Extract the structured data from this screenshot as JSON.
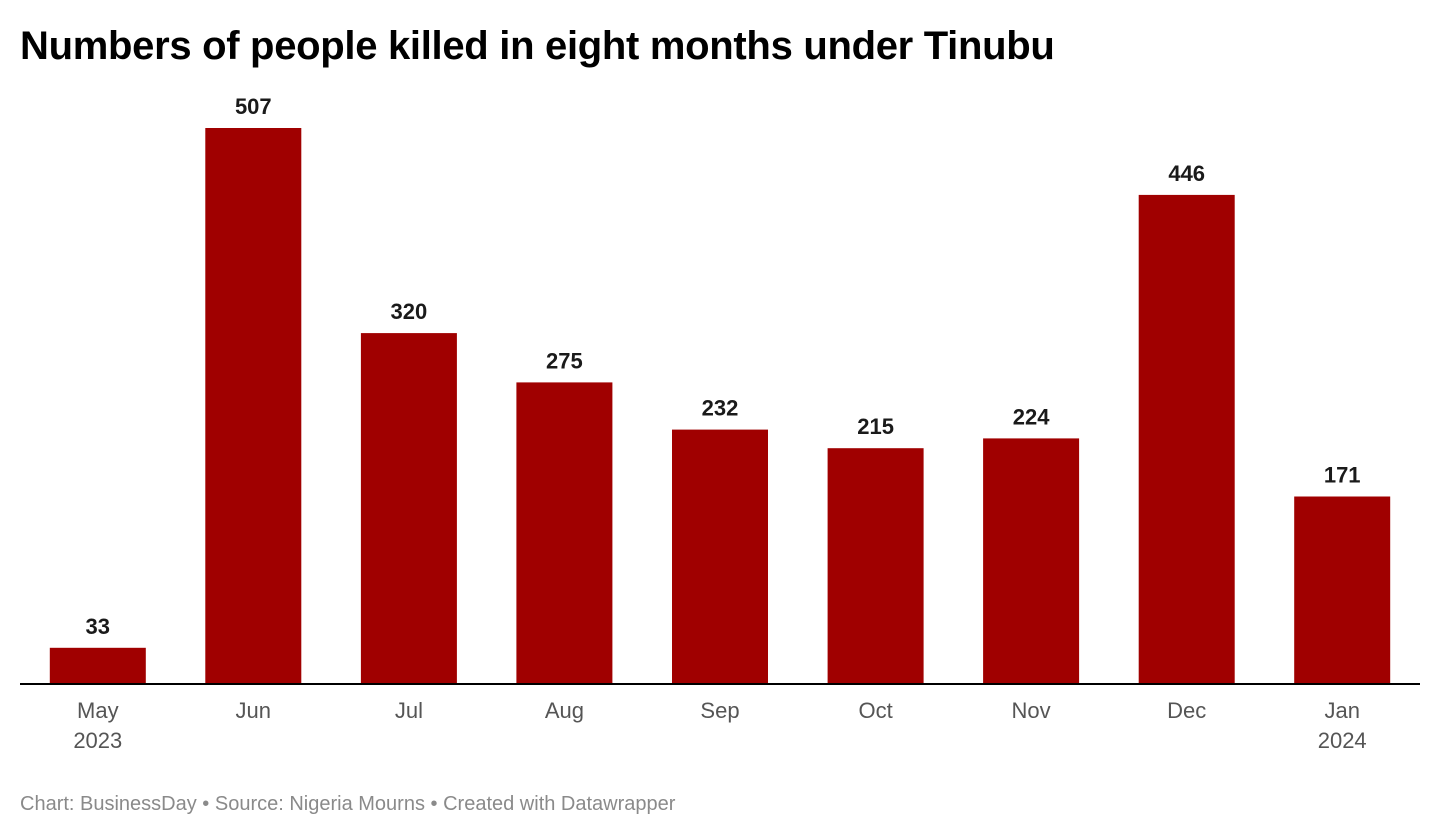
{
  "title": "Numbers of people killed in eight months under Tinubu",
  "footer": {
    "byline": "Chart: BusinessDay",
    "separator": " • ",
    "source": "Source: Nigeria Mourns",
    "credit": "Created with Datawrapper"
  },
  "colors": {
    "bar": "#a00000",
    "axis": "#000000",
    "value_label": "#1a1a1a",
    "tick_label": "#555555",
    "footer": "#8a8a8a"
  },
  "chart_data": {
    "type": "bar",
    "title": "Numbers of people killed in eight months under Tinubu",
    "xlabel": "",
    "ylabel": "",
    "categories": [
      "May 2023",
      "Jun",
      "Jul",
      "Aug",
      "Sep",
      "Oct",
      "Nov",
      "Dec",
      "Jan 2024"
    ],
    "category_lines": [
      [
        "May",
        "2023"
      ],
      [
        "Jun"
      ],
      [
        "Jul"
      ],
      [
        "Aug"
      ],
      [
        "Sep"
      ],
      [
        "Oct"
      ],
      [
        "Nov"
      ],
      [
        "Dec"
      ],
      [
        "Jan",
        "2024"
      ]
    ],
    "values": [
      33,
      507,
      320,
      275,
      232,
      215,
      224,
      446,
      171
    ],
    "ylim": [
      0,
      507
    ],
    "grid": false,
    "y_axis_shown": false,
    "data_labels": "above bars"
  }
}
